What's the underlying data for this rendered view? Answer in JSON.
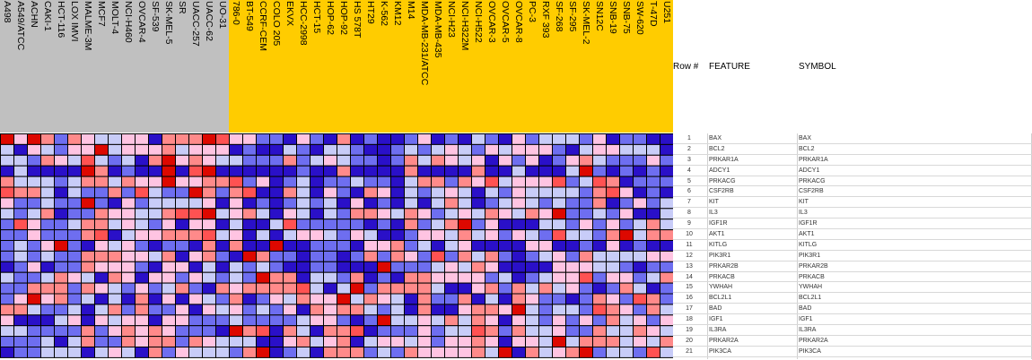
{
  "chart_data": {
    "type": "heatmap",
    "title": "",
    "column_groups": [
      {
        "name": "group-1",
        "color": "#c0c0c0",
        "columns": [
          "A498",
          "A549/ATCC",
          "ACHN",
          "CAKI-1",
          "HCT-116",
          "LOX IMVI",
          "MALME-3M",
          "MCF7",
          "MOLT-4",
          "NCI-H460",
          "OVCAR-4",
          "SF-539",
          "SK-MEL-5",
          "SR",
          "UACC-257",
          "UACC-62",
          "UO-31"
        ]
      },
      {
        "name": "group-2",
        "color": "#ffcc00",
        "columns": [
          "786-0",
          "BT-549",
          "CCRF-CEM",
          "COLO 205",
          "EKVX",
          "HCC-2998",
          "HCT-15",
          "HOP-62",
          "HOP-92",
          "HS 578T",
          "HT29",
          "K-562",
          "KM12",
          "M14",
          "MDA-MB-231/ATCC",
          "MDA-MB-435",
          "NCI-H23",
          "NCI-H322M",
          "NCI-H522",
          "OVCAR-3",
          "OVCAR-5",
          "OVCAR-8",
          "PC-3",
          "RXF 393",
          "SF-268",
          "SF-295",
          "SK-MEL-2",
          "SN12C",
          "SNB-19",
          "SNB-75",
          "SW-620",
          "T-47D",
          "U251"
        ]
      }
    ],
    "row_labels": [
      "BAX",
      "BCL2",
      "PRKAR1A",
      "ADCY1",
      "PRKACG",
      "CSF2RB",
      "KIT",
      "IL3",
      "IGF1R",
      "AKT1",
      "KITLG",
      "PIK3R1",
      "PRKAR2B",
      "PRKACB",
      "YWHAH",
      "BCL2L1",
      "BAD",
      "IGF1",
      "IL3RA",
      "PRKAR2A",
      "PIK3CA"
    ],
    "color_scale": {
      "min": -2,
      "max": 2,
      "low": "#2a0fd0",
      "mid": "#ffffff",
      "high": "#dd0000"
    },
    "values": [
      [
        2,
        0.5,
        2,
        1,
        -1,
        1,
        0.5,
        -0.5,
        -0.5,
        0.5,
        0.5,
        -2,
        1,
        1,
        1,
        2,
        1.5,
        0.5,
        0.5,
        -1,
        -1,
        -2,
        0.5,
        -1,
        -2,
        1,
        -2,
        -1,
        -2,
        -2,
        -1,
        0.5,
        -2,
        -1,
        -2,
        -0.5,
        -1,
        -2,
        0.5,
        -1,
        -0.5,
        -0.5,
        -0.5,
        -1,
        0.5,
        -2,
        -1,
        -1,
        -2,
        -2
      ],
      [
        -0.5,
        -2,
        0.5,
        -0.5,
        -1,
        0.5,
        0.5,
        2,
        -0.5,
        0.5,
        0.5,
        0.5,
        1,
        -0.5,
        0.5,
        0.5,
        0.5,
        -2,
        -1,
        -2,
        -2,
        -0.5,
        -1,
        -2,
        -0.5,
        -0.5,
        -1,
        -2,
        -2,
        -1,
        -0.5,
        -1,
        -0.5,
        0.5,
        -0.5,
        -1,
        0.5,
        -0.5,
        0.5,
        0.5,
        0.5,
        -1,
        -2,
        -0.5,
        0.5,
        0.5,
        -0.5,
        -0.5,
        -0.5,
        -2
      ],
      [
        -0.5,
        -0.5,
        -1,
        1,
        0.5,
        -0.5,
        1.5,
        -0.5,
        -1,
        -0.5,
        -2,
        1,
        2,
        0.5,
        1,
        0.5,
        -0.5,
        -0.5,
        -1,
        -1,
        -1,
        1,
        -1,
        -0.5,
        0.5,
        -0.5,
        -1,
        -1,
        -2,
        -1,
        1,
        -0.5,
        1,
        0.5,
        -0.5,
        0.5,
        -2,
        0.5,
        -1,
        0.5,
        -2,
        -1,
        0.5,
        1,
        -0.5,
        -1,
        -1,
        -1,
        0.5,
        -1
      ],
      [
        -2,
        -0.5,
        -2,
        -2,
        -2,
        -2,
        2,
        1,
        -2,
        -1,
        -2,
        -2,
        2,
        -2,
        1.5,
        2,
        -2,
        -2,
        -2,
        -2,
        -2,
        -2,
        -1,
        -2,
        -2,
        1,
        -2,
        -2,
        -2,
        -2,
        1,
        -2,
        -2,
        -2,
        -2,
        1,
        -2,
        -2,
        -0.5,
        -2,
        -2,
        -2,
        -0.5,
        2,
        -1,
        -2,
        -1,
        -2,
        -1,
        -2
      ],
      [
        1,
        -0.5,
        -0.5,
        -0.5,
        -1,
        -0.5,
        1,
        1,
        -0.5,
        1,
        0.5,
        0.5,
        2,
        0.5,
        0.5,
        1,
        1,
        1.5,
        -1,
        0.5,
        -2,
        -1,
        -0.5,
        -2,
        -1,
        -1,
        -0.5,
        -1,
        -1,
        -2,
        -0.5,
        1,
        1,
        -1,
        1,
        0.5,
        1.5,
        -0.5,
        0.5,
        0.5,
        0.5,
        1.5,
        -1,
        -0.5,
        1.5,
        1,
        -2,
        -1,
        -1,
        -1
      ],
      [
        1.5,
        1,
        1,
        -0.5,
        -2,
        -0.5,
        -1,
        -1,
        1,
        -1,
        1.5,
        -0.5,
        -1,
        -1,
        2,
        1,
        -1,
        1,
        1.5,
        -2,
        -2,
        1,
        -0.5,
        -2,
        0.5,
        -1,
        -2,
        1,
        0.5,
        -2,
        -0.5,
        -1,
        -0.5,
        0.5,
        -0.5,
        -2,
        -0.5,
        -1,
        0.5,
        -0.5,
        -0.5,
        -0.5,
        -0.5,
        -1,
        1,
        1.5,
        0.5,
        -2,
        -1,
        -2
      ],
      [
        0.5,
        -1,
        -1,
        -0.5,
        -1,
        -1,
        2,
        -1,
        -2,
        0.5,
        -1,
        -0.5,
        -0.5,
        -0.5,
        -0.5,
        0.5,
        -2,
        0.5,
        -2,
        -1,
        -2,
        -1,
        -0.5,
        -1,
        -0.5,
        -2,
        0.5,
        -2,
        -1,
        -2,
        -0.5,
        -2,
        -0.5,
        1,
        -0.5,
        -2,
        -1,
        -0.5,
        0.5,
        -0.5,
        -1,
        -0.5,
        -1,
        -1,
        1,
        -2,
        -1,
        0.5,
        -1,
        -0.5
      ],
      [
        -0.5,
        -1,
        -0.5,
        1,
        -2,
        -1,
        -1,
        1,
        0.5,
        0.5,
        -0.5,
        -0.5,
        1,
        1.5,
        1.5,
        2,
        -0.5,
        0.5,
        1,
        -0.5,
        -2,
        0.5,
        -0.5,
        -2,
        -0.5,
        -1,
        1,
        1,
        0.5,
        -0.5,
        1,
        0.5,
        -1,
        -0.5,
        0.5,
        -0.5,
        1,
        0.5,
        -0.5,
        1,
        0.5,
        2,
        -1,
        -1,
        -0.5,
        -1,
        0.5,
        -2,
        -2,
        -0.5
      ],
      [
        -1,
        1.5,
        0.5,
        -1,
        -1,
        -0.5,
        1,
        1,
        -0.5,
        0.5,
        -0.5,
        -1,
        0.5,
        -2,
        0.5,
        0.5,
        -2,
        -0.5,
        -2,
        -2,
        -0.5,
        1.5,
        -1,
        -1,
        -1,
        -1,
        -1,
        -2,
        -1,
        -2,
        1,
        -1,
        -0.5,
        1,
        2,
        -1,
        0.5,
        -2,
        -2,
        -2,
        -0.5,
        -0.5,
        -1,
        0.5,
        -1,
        0.5,
        -1,
        -0.5,
        1,
        -0.5
      ],
      [
        -1,
        -1,
        0.5,
        -1,
        -1,
        -1,
        1,
        1.5,
        -2,
        -0.5,
        0.5,
        0.5,
        1,
        1,
        1,
        1.5,
        -0.5,
        0.5,
        -2,
        -0.5,
        -2,
        -0.5,
        0.5,
        0.5,
        -0.5,
        -1,
        0.5,
        -0.5,
        -2,
        -2,
        -1,
        0.5,
        0.5,
        -0.5,
        1,
        -0.5,
        0.5,
        -1,
        0.5,
        -0.5,
        -1,
        1.5,
        -0.5,
        -0.5,
        -1,
        1,
        2,
        -0.5,
        1,
        1
      ],
      [
        -1,
        -0.5,
        -1,
        0.5,
        2,
        -1,
        -2,
        0.5,
        -0.5,
        0.5,
        -1,
        -2,
        -1,
        -1,
        -2,
        1,
        -2,
        1,
        -2,
        -2,
        2,
        -2,
        -2,
        -1,
        -1,
        -1,
        -2,
        0.5,
        0.5,
        1,
        -1,
        -0.5,
        -2,
        -0.5,
        0.5,
        -2,
        -2,
        -2,
        -2,
        0.5,
        0.5,
        -2,
        -2,
        -1,
        -2,
        0.5,
        -2,
        -1,
        -2,
        -2
      ],
      [
        -1,
        -0.5,
        -1,
        -0.5,
        -1,
        -1,
        1,
        1,
        1,
        0.5,
        0.5,
        -0.5,
        1,
        -2,
        0.5,
        1,
        -1,
        -2,
        2,
        1,
        -1,
        -1,
        -2,
        -1,
        -1,
        -2,
        -1,
        1,
        -1,
        1,
        0.5,
        -1,
        1.5,
        -1,
        1,
        -0.5,
        1,
        -1,
        -2,
        -1,
        -0.5,
        0.5,
        -1,
        1,
        -0.5,
        -0.5,
        -0.5,
        -0.5,
        0.5,
        0.5
      ],
      [
        -2,
        -1,
        0.5,
        -2,
        -1,
        -1,
        1,
        0.5,
        0.5,
        0.5,
        -1,
        -2,
        0.5,
        0.5,
        -2,
        -0.5,
        -2,
        -0.5,
        -1,
        -0.5,
        -1,
        -2,
        -2,
        -1,
        -1,
        -2,
        -2,
        -2,
        2,
        -1,
        -1,
        -1,
        -0.5,
        0.5,
        -0.5,
        1,
        0.5,
        -2,
        -2,
        -2,
        -2,
        0.5,
        0.5,
        0.5,
        -0.5,
        -0.5,
        -1,
        -2,
        -1,
        -1
      ],
      [
        -0.5,
        -1,
        -1,
        -0.5,
        1,
        0.5,
        -0.5,
        -2,
        1,
        0.5,
        -2,
        0.5,
        0.5,
        -1,
        0.5,
        -0.5,
        -1,
        -0.5,
        -1,
        2,
        1,
        1,
        -2,
        -0.5,
        -0.5,
        -1,
        1,
        -2,
        -1,
        -2,
        1,
        1,
        0.5,
        0.5,
        0.5,
        0.5,
        -1,
        -0.5,
        -2,
        -1,
        -0.5,
        0.5,
        0.5,
        1.5,
        -1,
        0.5,
        0.5,
        -1,
        -0.5,
        1
      ],
      [
        -1,
        -1,
        1,
        1,
        1,
        -1,
        1,
        0.5,
        -0.5,
        -1,
        0.5,
        -1,
        -0.5,
        1,
        -1,
        -2,
        1,
        0.5,
        1,
        1,
        1,
        1,
        1.5,
        -0.5,
        -2,
        -0.5,
        2,
        -1,
        1,
        1,
        1,
        1,
        -0.5,
        -2,
        -2,
        0.5,
        1,
        -1,
        1,
        -0.5,
        1,
        -0.5,
        0.5,
        -1,
        -2,
        -1,
        1,
        -0.5,
        -2,
        -1
      ],
      [
        -1,
        0.5,
        2,
        0.5,
        1,
        -1,
        -0.5,
        -2,
        -0.5,
        -2,
        1,
        -2,
        0.5,
        -2,
        0.5,
        -0.5,
        -1,
        1,
        -2,
        -1,
        0.5,
        -0.5,
        1,
        0.5,
        0.5,
        2,
        -0.5,
        1,
        0.5,
        -0.5,
        -2,
        1,
        -1,
        -1,
        1,
        -2,
        -0.5,
        -2,
        1,
        0.5,
        -1,
        -1,
        -2,
        -1,
        1,
        0.5,
        -1,
        1.5,
        1,
        -1
      ],
      [
        1,
        1,
        -0.5,
        -1,
        -1,
        -0.5,
        -2,
        -0.5,
        1,
        -1,
        1,
        -1,
        -1,
        0.5,
        -2,
        0.5,
        -0.5,
        0.5,
        -1,
        -0.5,
        -1,
        0.5,
        -2,
        1,
        0.5,
        1,
        1,
        -0.5,
        -1,
        -0.5,
        -2,
        1,
        -2,
        -2,
        0.5,
        1,
        1,
        0.5,
        2,
        -0.5,
        -1,
        -0.5,
        -0.5,
        -1,
        1.5,
        1,
        0.5,
        -1,
        1,
        -0.5
      ],
      [
        0.5,
        -2,
        -2,
        -2,
        -0.5,
        0.5,
        -2,
        0.5,
        -0.5,
        0.5,
        0.5,
        -2,
        0.5,
        0.5,
        -1,
        -1,
        -1,
        -0.5,
        -1,
        -1,
        -1,
        -1,
        -0.5,
        0.5,
        0.5,
        -1,
        -2,
        -1,
        2,
        -0.5,
        -0.5,
        0.5,
        -0.5,
        1,
        -0.5,
        1,
        0.5,
        -2,
        0.5,
        -0.5,
        -1,
        0.5,
        -1,
        0.5,
        -1,
        1,
        -0.5,
        0.5,
        -1,
        0.5
      ],
      [
        -0.5,
        -0.5,
        -1,
        -1,
        -1,
        -1,
        1,
        -1,
        0.5,
        1,
        0.5,
        1,
        0.5,
        -1,
        -1,
        -1,
        -2,
        2,
        1,
        1.5,
        -2,
        1,
        -0.5,
        -2,
        1,
        1,
        1.5,
        -2,
        -1,
        -1,
        -1,
        0.5,
        -1,
        -0.5,
        -0.5,
        1.5,
        1,
        -1,
        1,
        -0.5,
        -0.5,
        0.5,
        -1,
        -1,
        1,
        -0.5,
        -0.5,
        1,
        0.5,
        -0.5
      ],
      [
        -1,
        -1,
        -1,
        -0.5,
        -2,
        -0.5,
        1,
        -1,
        -1,
        1,
        0.5,
        1,
        1,
        -1,
        1,
        0.5,
        -0.5,
        -0.5,
        -0.5,
        -2,
        -2,
        0.5,
        1,
        -0.5,
        0.5,
        1,
        -2,
        -0.5,
        0.5,
        0.5,
        -0.5,
        0.5,
        -1,
        0.5,
        0.5,
        1,
        0.5,
        -2,
        0.5,
        0.5,
        -0.5,
        2,
        -0.5,
        1,
        1,
        1,
        -0.5,
        0.5,
        -0.5,
        1
      ],
      [
        -2,
        -1,
        -1,
        -0.5,
        -0.5,
        -0.5,
        -2,
        -0.5,
        0.5,
        -0.5,
        -2,
        1,
        -1,
        0.5,
        -0.5,
        -0.5,
        -0.5,
        -1,
        1,
        2,
        -2,
        -1,
        -0.5,
        -2,
        1,
        1,
        1,
        -1,
        -0.5,
        -1,
        1,
        0.5,
        0.5,
        0.5,
        0.5,
        1,
        -0.5,
        2,
        -2,
        1,
        -0.5,
        0.5,
        1,
        2,
        -1,
        -0.5,
        -0.5,
        -1,
        1.5,
        -0.5
      ]
    ]
  },
  "table": {
    "headers": {
      "row": "Row #",
      "feature": "FEATURE",
      "symbol": "SYMBOL"
    },
    "rows": [
      {
        "n": "1",
        "feature": "BAX",
        "symbol": "BAX"
      },
      {
        "n": "2",
        "feature": "BCL2",
        "symbol": "BCL2"
      },
      {
        "n": "3",
        "feature": "PRKAR1A",
        "symbol": "PRKAR1A"
      },
      {
        "n": "4",
        "feature": "ADCY1",
        "symbol": "ADCY1"
      },
      {
        "n": "5",
        "feature": "PRKACG",
        "symbol": "PRKACG"
      },
      {
        "n": "6",
        "feature": "CSF2RB",
        "symbol": "CSF2RB"
      },
      {
        "n": "7",
        "feature": "KIT",
        "symbol": "KIT"
      },
      {
        "n": "8",
        "feature": "IL3",
        "symbol": "IL3"
      },
      {
        "n": "9",
        "feature": "IGF1R",
        "symbol": "IGF1R"
      },
      {
        "n": "10",
        "feature": "AKT1",
        "symbol": "AKT1"
      },
      {
        "n": "11",
        "feature": "KITLG",
        "symbol": "KITLG"
      },
      {
        "n": "12",
        "feature": "PIK3R1",
        "symbol": "PIK3R1"
      },
      {
        "n": "13",
        "feature": "PRKAR2B",
        "symbol": "PRKAR2B"
      },
      {
        "n": "14",
        "feature": "PRKACB",
        "symbol": "PRKACB"
      },
      {
        "n": "15",
        "feature": "YWHAH",
        "symbol": "YWHAH"
      },
      {
        "n": "16",
        "feature": "BCL2L1",
        "symbol": "BCL2L1"
      },
      {
        "n": "17",
        "feature": "BAD",
        "symbol": "BAD"
      },
      {
        "n": "18",
        "feature": "IGF1",
        "symbol": "IGF1"
      },
      {
        "n": "19",
        "feature": "IL3RA",
        "symbol": "IL3RA"
      },
      {
        "n": "20",
        "feature": "PRKAR2A",
        "symbol": "PRKAR2A"
      },
      {
        "n": "21",
        "feature": "PIK3CA",
        "symbol": "PIK3CA"
      }
    ]
  }
}
